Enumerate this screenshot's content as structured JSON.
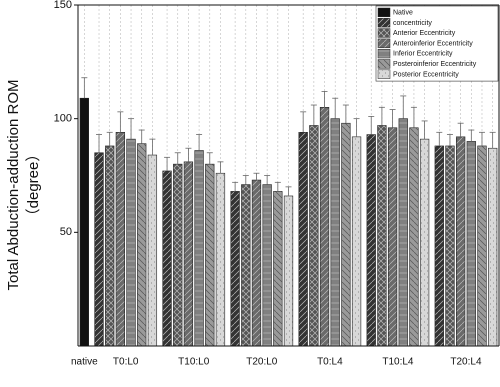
{
  "chart_data": {
    "type": "bar",
    "ylabel": "Total Abduction-adduction ROM",
    "ylabel_unit": "（degree）",
    "categories": [
      "native",
      "T0:L0",
      "T10:L0",
      "T20:L0",
      "T0:L4",
      "T10:L4",
      "T20:L4"
    ],
    "series": [
      {
        "name": "Native",
        "color": "#111111",
        "values": [
          109,
          null,
          null,
          null,
          null,
          null,
          null
        ],
        "errors": [
          9,
          null,
          null,
          null,
          null,
          null,
          null
        ]
      },
      {
        "name": "concentricity",
        "color": "#333333",
        "values": [
          null,
          85,
          77,
          68,
          94,
          93,
          88
        ],
        "errors": [
          null,
          8,
          6,
          4,
          9,
          8,
          6
        ]
      },
      {
        "name": "Anterior Eccentricity",
        "color": "#555555",
        "values": [
          null,
          88,
          80,
          71,
          97,
          97,
          88
        ],
        "errors": [
          null,
          6,
          5,
          4,
          9,
          8,
          5
        ]
      },
      {
        "name": "Anteroinferior Eccentricity",
        "color": "#6a6a6a",
        "values": [
          null,
          94,
          81,
          73,
          105,
          96,
          92
        ],
        "errors": [
          null,
          9,
          6,
          3,
          7,
          8,
          6
        ]
      },
      {
        "name": "Inferior Eccentricity",
        "color": "#808080",
        "values": [
          null,
          91,
          86,
          71,
          100,
          100,
          90
        ],
        "errors": [
          null,
          9,
          7,
          4,
          9,
          10,
          5
        ]
      },
      {
        "name": "Posteroinferior Eccentricity",
        "color": "#9a9a9a",
        "values": [
          null,
          89,
          80,
          68,
          98,
          96,
          88
        ],
        "errors": [
          null,
          6,
          5,
          4,
          8,
          9,
          6
        ]
      },
      {
        "name": "Posterior Eccentricity",
        "color": "#d8d8d8",
        "values": [
          null,
          84,
          76,
          66,
          92,
          91,
          87
        ],
        "errors": [
          null,
          7,
          5,
          4,
          8,
          8,
          7
        ]
      }
    ],
    "ylim": [
      0,
      150
    ],
    "yticks": [
      50,
      100,
      150
    ],
    "grid": true,
    "legend": "top-right"
  }
}
